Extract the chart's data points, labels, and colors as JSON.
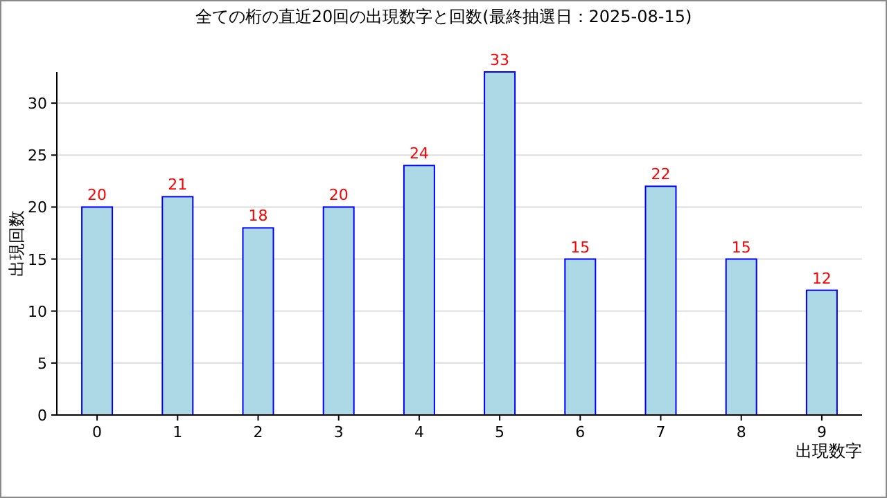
{
  "chart_data": {
    "type": "bar",
    "title": "全ての桁の直近20回の出現数字と回数(最終抽選日：2025-08-15)",
    "xlabel": "出現数字",
    "ylabel": "出現回数",
    "categories": [
      "0",
      "1",
      "2",
      "3",
      "4",
      "5",
      "6",
      "7",
      "8",
      "9"
    ],
    "values": [
      20,
      21,
      18,
      20,
      24,
      33,
      15,
      22,
      15,
      12
    ],
    "color": "#add8e6",
    "ylim": [
      0,
      33
    ],
    "yticks": [
      0,
      5,
      10,
      15,
      20,
      25,
      30
    ],
    "grid": "y",
    "data_labels": true
  }
}
